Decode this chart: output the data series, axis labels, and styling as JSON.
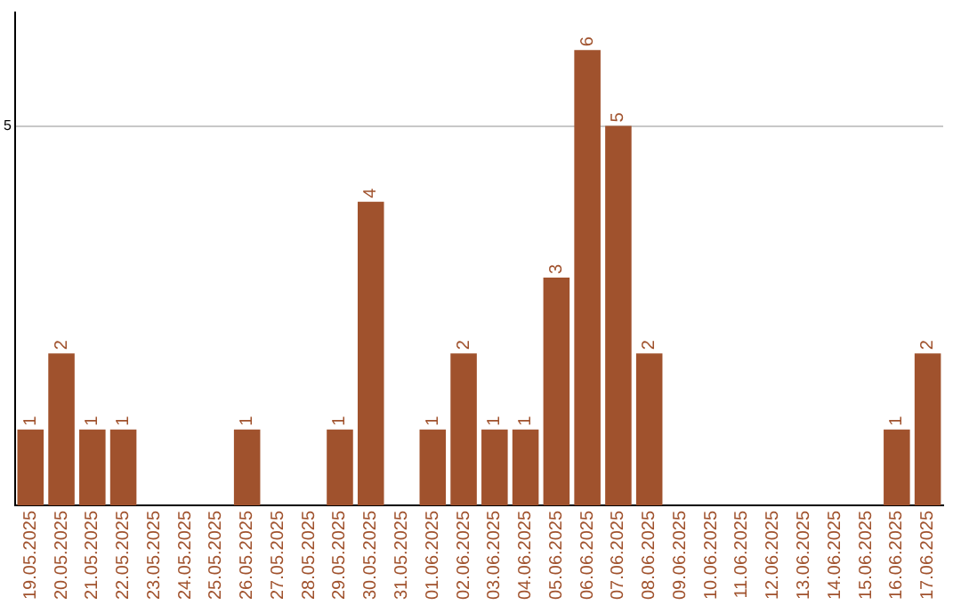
{
  "chart_data": {
    "type": "bar",
    "categories": [
      "19.05.2025",
      "20.05.2025",
      "21.05.2025",
      "22.05.2025",
      "23.05.2025",
      "24.05.2025",
      "25.05.2025",
      "26.05.2025",
      "27.05.2025",
      "28.05.2025",
      "29.05.2025",
      "30.05.2025",
      "31.05.2025",
      "01.06.2025",
      "02.06.2025",
      "03.06.2025",
      "04.06.2025",
      "05.06.2025",
      "06.06.2025",
      "07.06.2025",
      "08.06.2025",
      "09.06.2025",
      "10.06.2025",
      "11.06.2025",
      "12.06.2025",
      "13.06.2025",
      "14.06.2025",
      "15.06.2025",
      "16.06.2025",
      "17.06.2025"
    ],
    "values": [
      1,
      2,
      1,
      1,
      0,
      0,
      0,
      1,
      0,
      0,
      1,
      4,
      0,
      1,
      2,
      1,
      1,
      3,
      6,
      5,
      2,
      0,
      0,
      0,
      0,
      0,
      0,
      0,
      1,
      2
    ],
    "value_labels": [
      "1",
      "2",
      "1",
      "1",
      null,
      null,
      null,
      "1",
      null,
      null,
      "1",
      "4",
      null,
      "1",
      "2",
      "1",
      "1",
      "3",
      "6",
      "5",
      "2",
      null,
      null,
      null,
      null,
      null,
      null,
      null,
      "1",
      "2"
    ],
    "color": "#a0522d",
    "ylim": [
      0,
      6.5
    ],
    "yticks": [
      5
    ],
    "grid": "y",
    "legend": false
  }
}
